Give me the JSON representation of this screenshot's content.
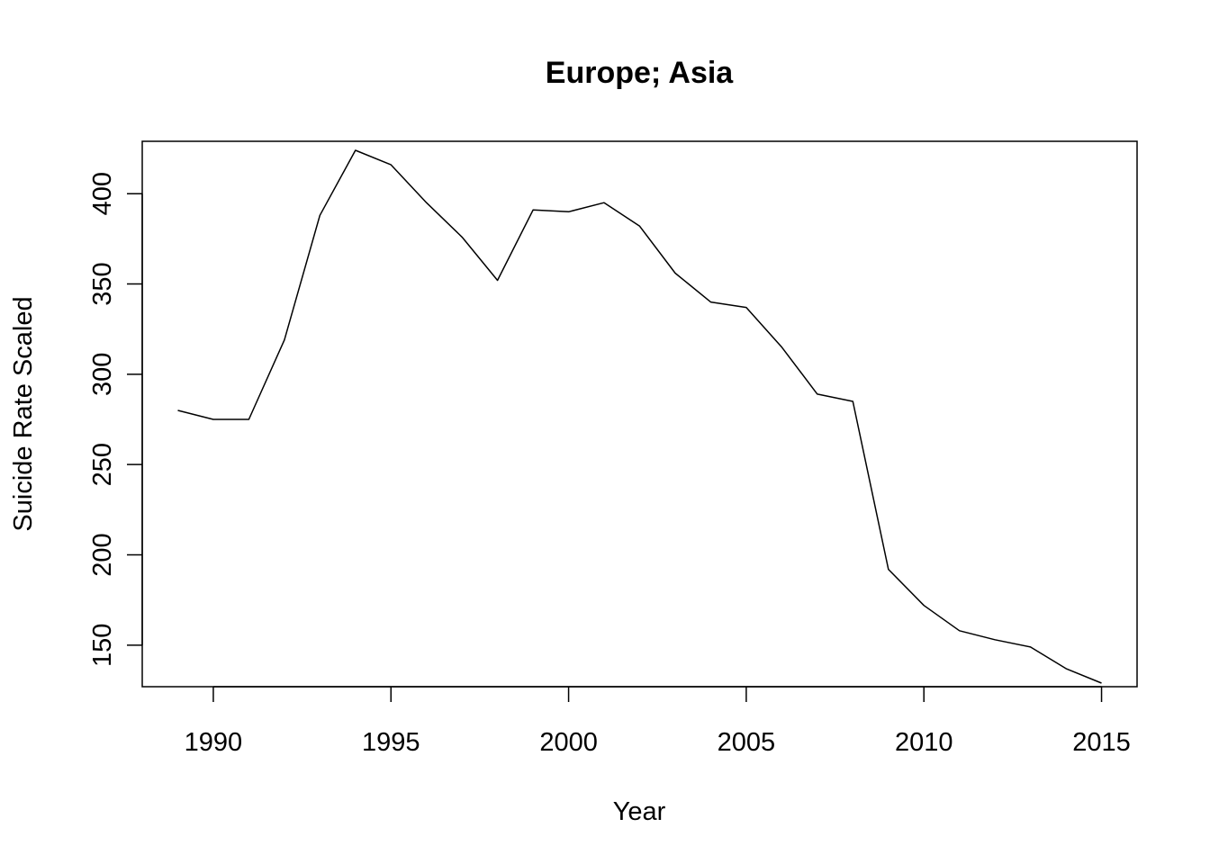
{
  "chart_data": {
    "type": "line",
    "title": "Europe; Asia",
    "xlabel": "Year",
    "ylabel": "Suicide Rate Scaled",
    "xlim": [
      1988,
      2016
    ],
    "ylim": [
      127,
      429
    ],
    "x_ticks": [
      1990,
      1995,
      2000,
      2005,
      2010,
      2015
    ],
    "y_ticks": [
      150,
      200,
      250,
      300,
      350,
      400
    ],
    "grid": false,
    "legend": "none",
    "colors": {
      "line": "#000000",
      "frame": "#000000",
      "background": "#ffffff"
    },
    "series": [
      {
        "x": [
          1989,
          1990,
          1991,
          1992,
          1993,
          1994,
          1995,
          1996,
          1997,
          1998,
          1999,
          2000,
          2001,
          2002,
          2003,
          2004,
          2005,
          2006,
          2007,
          2008,
          2009,
          2010,
          2011,
          2012,
          2013,
          2014,
          2015
        ],
        "values": [
          280,
          275,
          275,
          319,
          388,
          424,
          416,
          395,
          376,
          352,
          391,
          390,
          395,
          382,
          356,
          340,
          337,
          315,
          289,
          285,
          192,
          172,
          158,
          153,
          149,
          137,
          129
        ]
      }
    ]
  }
}
